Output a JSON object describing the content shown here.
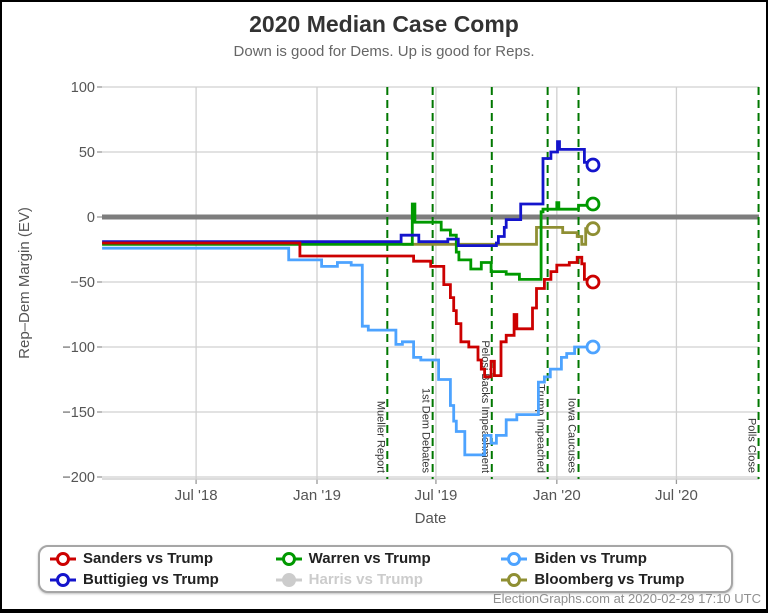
{
  "header": {
    "title": "2020 Median Case Comp",
    "subtitle": "Down is good for Dems. Up is good for Reps."
  },
  "footer": {
    "credit": "ElectionGraphs.com at 2020-02-29 17:10 UTC"
  },
  "legend": {
    "items": [
      {
        "label": "Sanders vs Trump",
        "color": "#cc0000",
        "disabled": false
      },
      {
        "label": "Warren vs Trump",
        "color": "#009900",
        "disabled": false
      },
      {
        "label": "Biden vs Trump",
        "color": "#4da3ff",
        "disabled": false
      },
      {
        "label": "Buttigieg vs Trump",
        "color": "#1414cc",
        "disabled": false
      },
      {
        "label": "Harris vs Trump",
        "color": "#cccccc",
        "disabled": true
      },
      {
        "label": "Bloomberg vs Trump",
        "color": "#8f8f33",
        "disabled": false
      }
    ]
  },
  "colors": {
    "grid": "#d0d0d0",
    "axis_tick": "#999999",
    "axis_text": "#555555",
    "zero_line": "#7d7d7d",
    "event_line": "#007700",
    "event_text": "#333333"
  },
  "chart_data": {
    "type": "line",
    "title": "2020 Median Case Comp",
    "subtitle": "Down is good for Dems. Up is good for Reps.",
    "xlabel": "Date",
    "ylabel": "Rep–Dem Margin (EV)",
    "ylim": [
      -200,
      100
    ],
    "xlim": [
      "2018-02-08",
      "2020-11-04"
    ],
    "grid": true,
    "legend_position": "bottom",
    "zero_line": 0,
    "y_ticks": [
      {
        "value": 100,
        "label": "100"
      },
      {
        "value": 50,
        "label": "50"
      },
      {
        "value": 0,
        "label": "0"
      },
      {
        "value": -50,
        "label": "−50"
      },
      {
        "value": -100,
        "label": "−100"
      },
      {
        "value": -150,
        "label": "−150"
      },
      {
        "value": -200,
        "label": "−200"
      }
    ],
    "x_ticks": [
      {
        "date": "2018-07-01",
        "label": "Jul '18"
      },
      {
        "date": "2019-01-01",
        "label": "Jan '19"
      },
      {
        "date": "2019-07-01",
        "label": "Jul '19"
      },
      {
        "date": "2020-01-01",
        "label": "Jan '20"
      },
      {
        "date": "2020-07-01",
        "label": "Jul '20"
      }
    ],
    "events": [
      {
        "date": "2019-04-18",
        "label": "Mueller Report"
      },
      {
        "date": "2019-06-26",
        "label": "1st Dem Debates"
      },
      {
        "date": "2019-09-24",
        "label": "Pelosi Backs Impeachment"
      },
      {
        "date": "2019-12-18",
        "label": "Trump Impeached"
      },
      {
        "date": "2020-02-03",
        "label": "Iowa Caucuses"
      },
      {
        "date": "2020-11-03",
        "label": "Polls Close"
      }
    ],
    "series": [
      {
        "name": "Bloomberg vs Trump",
        "color": "#8f8f33",
        "hidden": false,
        "end_marker": true,
        "points": [
          [
            "2019-05-11",
            -21
          ],
          [
            "2019-12-01",
            -8
          ],
          [
            "2020-01-10",
            -12
          ],
          [
            "2020-02-01",
            -15
          ],
          [
            "2020-02-08",
            -21
          ],
          [
            "2020-02-14",
            -9
          ],
          [
            "2020-02-25",
            -9
          ]
        ]
      },
      {
        "name": "Harris vs Trump",
        "color": "#cccccc",
        "hidden": true,
        "end_marker": false,
        "points": []
      },
      {
        "name": "Biden vs Trump",
        "color": "#4da3ff",
        "hidden": false,
        "end_marker": true,
        "points": [
          [
            "2018-02-08",
            -24
          ],
          [
            "2018-11-19",
            -33
          ],
          [
            "2019-01-08",
            -38
          ],
          [
            "2019-02-01",
            -35
          ],
          [
            "2019-02-22",
            -37
          ],
          [
            "2019-03-11",
            -84
          ],
          [
            "2019-03-20",
            -87
          ],
          [
            "2019-05-01",
            -98
          ],
          [
            "2019-05-11",
            -96
          ],
          [
            "2019-05-28",
            -108
          ],
          [
            "2019-06-08",
            -110
          ],
          [
            "2019-07-05",
            -125
          ],
          [
            "2019-07-23",
            -145
          ],
          [
            "2019-07-28",
            -157
          ],
          [
            "2019-08-01",
            -165
          ],
          [
            "2019-08-14",
            -183
          ],
          [
            "2019-09-13",
            -168
          ],
          [
            "2019-09-23",
            -174
          ],
          [
            "2019-10-01",
            -168
          ],
          [
            "2019-10-16",
            -156
          ],
          [
            "2019-11-01",
            -152
          ],
          [
            "2019-12-04",
            -127
          ],
          [
            "2019-12-13",
            -123
          ],
          [
            "2019-12-22",
            -117
          ],
          [
            "2020-01-08",
            -108
          ],
          [
            "2020-01-16",
            -105
          ],
          [
            "2020-01-28",
            -100
          ],
          [
            "2020-02-25",
            -100
          ]
        ]
      },
      {
        "name": "Warren vs Trump",
        "color": "#009900",
        "hidden": false,
        "end_marker": true,
        "points": [
          [
            "2018-02-08",
            -21
          ],
          [
            "2019-05-26",
            10
          ],
          [
            "2019-05-30",
            -4
          ],
          [
            "2019-07-09",
            -10
          ],
          [
            "2019-07-23",
            -14
          ],
          [
            "2019-08-01",
            -27
          ],
          [
            "2019-08-05",
            -33
          ],
          [
            "2019-08-23",
            -40
          ],
          [
            "2019-09-08",
            -35
          ],
          [
            "2019-09-23",
            -42
          ],
          [
            "2019-10-16",
            -44
          ],
          [
            "2019-11-05",
            -48
          ],
          [
            "2019-12-08",
            4
          ],
          [
            "2019-12-11",
            6
          ],
          [
            "2020-01-01",
            11
          ],
          [
            "2020-01-04",
            6
          ],
          [
            "2020-02-03",
            9
          ],
          [
            "2020-02-25",
            10
          ]
        ]
      },
      {
        "name": "Buttigieg vs Trump",
        "color": "#1414cc",
        "hidden": false,
        "end_marker": true,
        "points": [
          [
            "2018-02-08",
            -19
          ],
          [
            "2019-05-09",
            -14
          ],
          [
            "2019-06-05",
            -19
          ],
          [
            "2019-07-19",
            -17
          ],
          [
            "2019-08-04",
            -22
          ],
          [
            "2019-10-01",
            -20
          ],
          [
            "2019-10-04",
            -15
          ],
          [
            "2019-10-13",
            -8
          ],
          [
            "2019-10-16",
            -2
          ],
          [
            "2019-11-07",
            10
          ],
          [
            "2019-12-11",
            45
          ],
          [
            "2019-12-23",
            50
          ],
          [
            "2020-01-02",
            58
          ],
          [
            "2020-01-05",
            52
          ],
          [
            "2020-02-12",
            42
          ],
          [
            "2020-02-25",
            40
          ]
        ]
      },
      {
        "name": "Sanders vs Trump",
        "color": "#cc0000",
        "hidden": false,
        "end_marker": true,
        "points": [
          [
            "2018-02-08",
            -20
          ],
          [
            "2018-12-06",
            -30
          ],
          [
            "2019-05-28",
            -34
          ],
          [
            "2019-06-23",
            -38
          ],
          [
            "2019-07-13",
            -52
          ],
          [
            "2019-07-23",
            -62
          ],
          [
            "2019-07-28",
            -72
          ],
          [
            "2019-08-01",
            -82
          ],
          [
            "2019-08-08",
            -96
          ],
          [
            "2019-08-20",
            -100
          ],
          [
            "2019-09-03",
            -110
          ],
          [
            "2019-09-08",
            -117
          ],
          [
            "2019-09-13",
            -123
          ],
          [
            "2019-09-23",
            -111
          ],
          [
            "2019-09-28",
            -122
          ],
          [
            "2019-10-08",
            -96
          ],
          [
            "2019-10-16",
            -91
          ],
          [
            "2019-10-28",
            -75
          ],
          [
            "2019-11-01",
            -86
          ],
          [
            "2019-11-25",
            -70
          ],
          [
            "2019-12-01",
            -55
          ],
          [
            "2019-12-13",
            -48
          ],
          [
            "2019-12-23",
            -42
          ],
          [
            "2020-01-01",
            -37
          ],
          [
            "2020-01-20",
            -35
          ],
          [
            "2020-02-01",
            -31
          ],
          [
            "2020-02-08",
            -36
          ],
          [
            "2020-02-12",
            -48
          ],
          [
            "2020-02-25",
            -50
          ]
        ]
      }
    ]
  }
}
